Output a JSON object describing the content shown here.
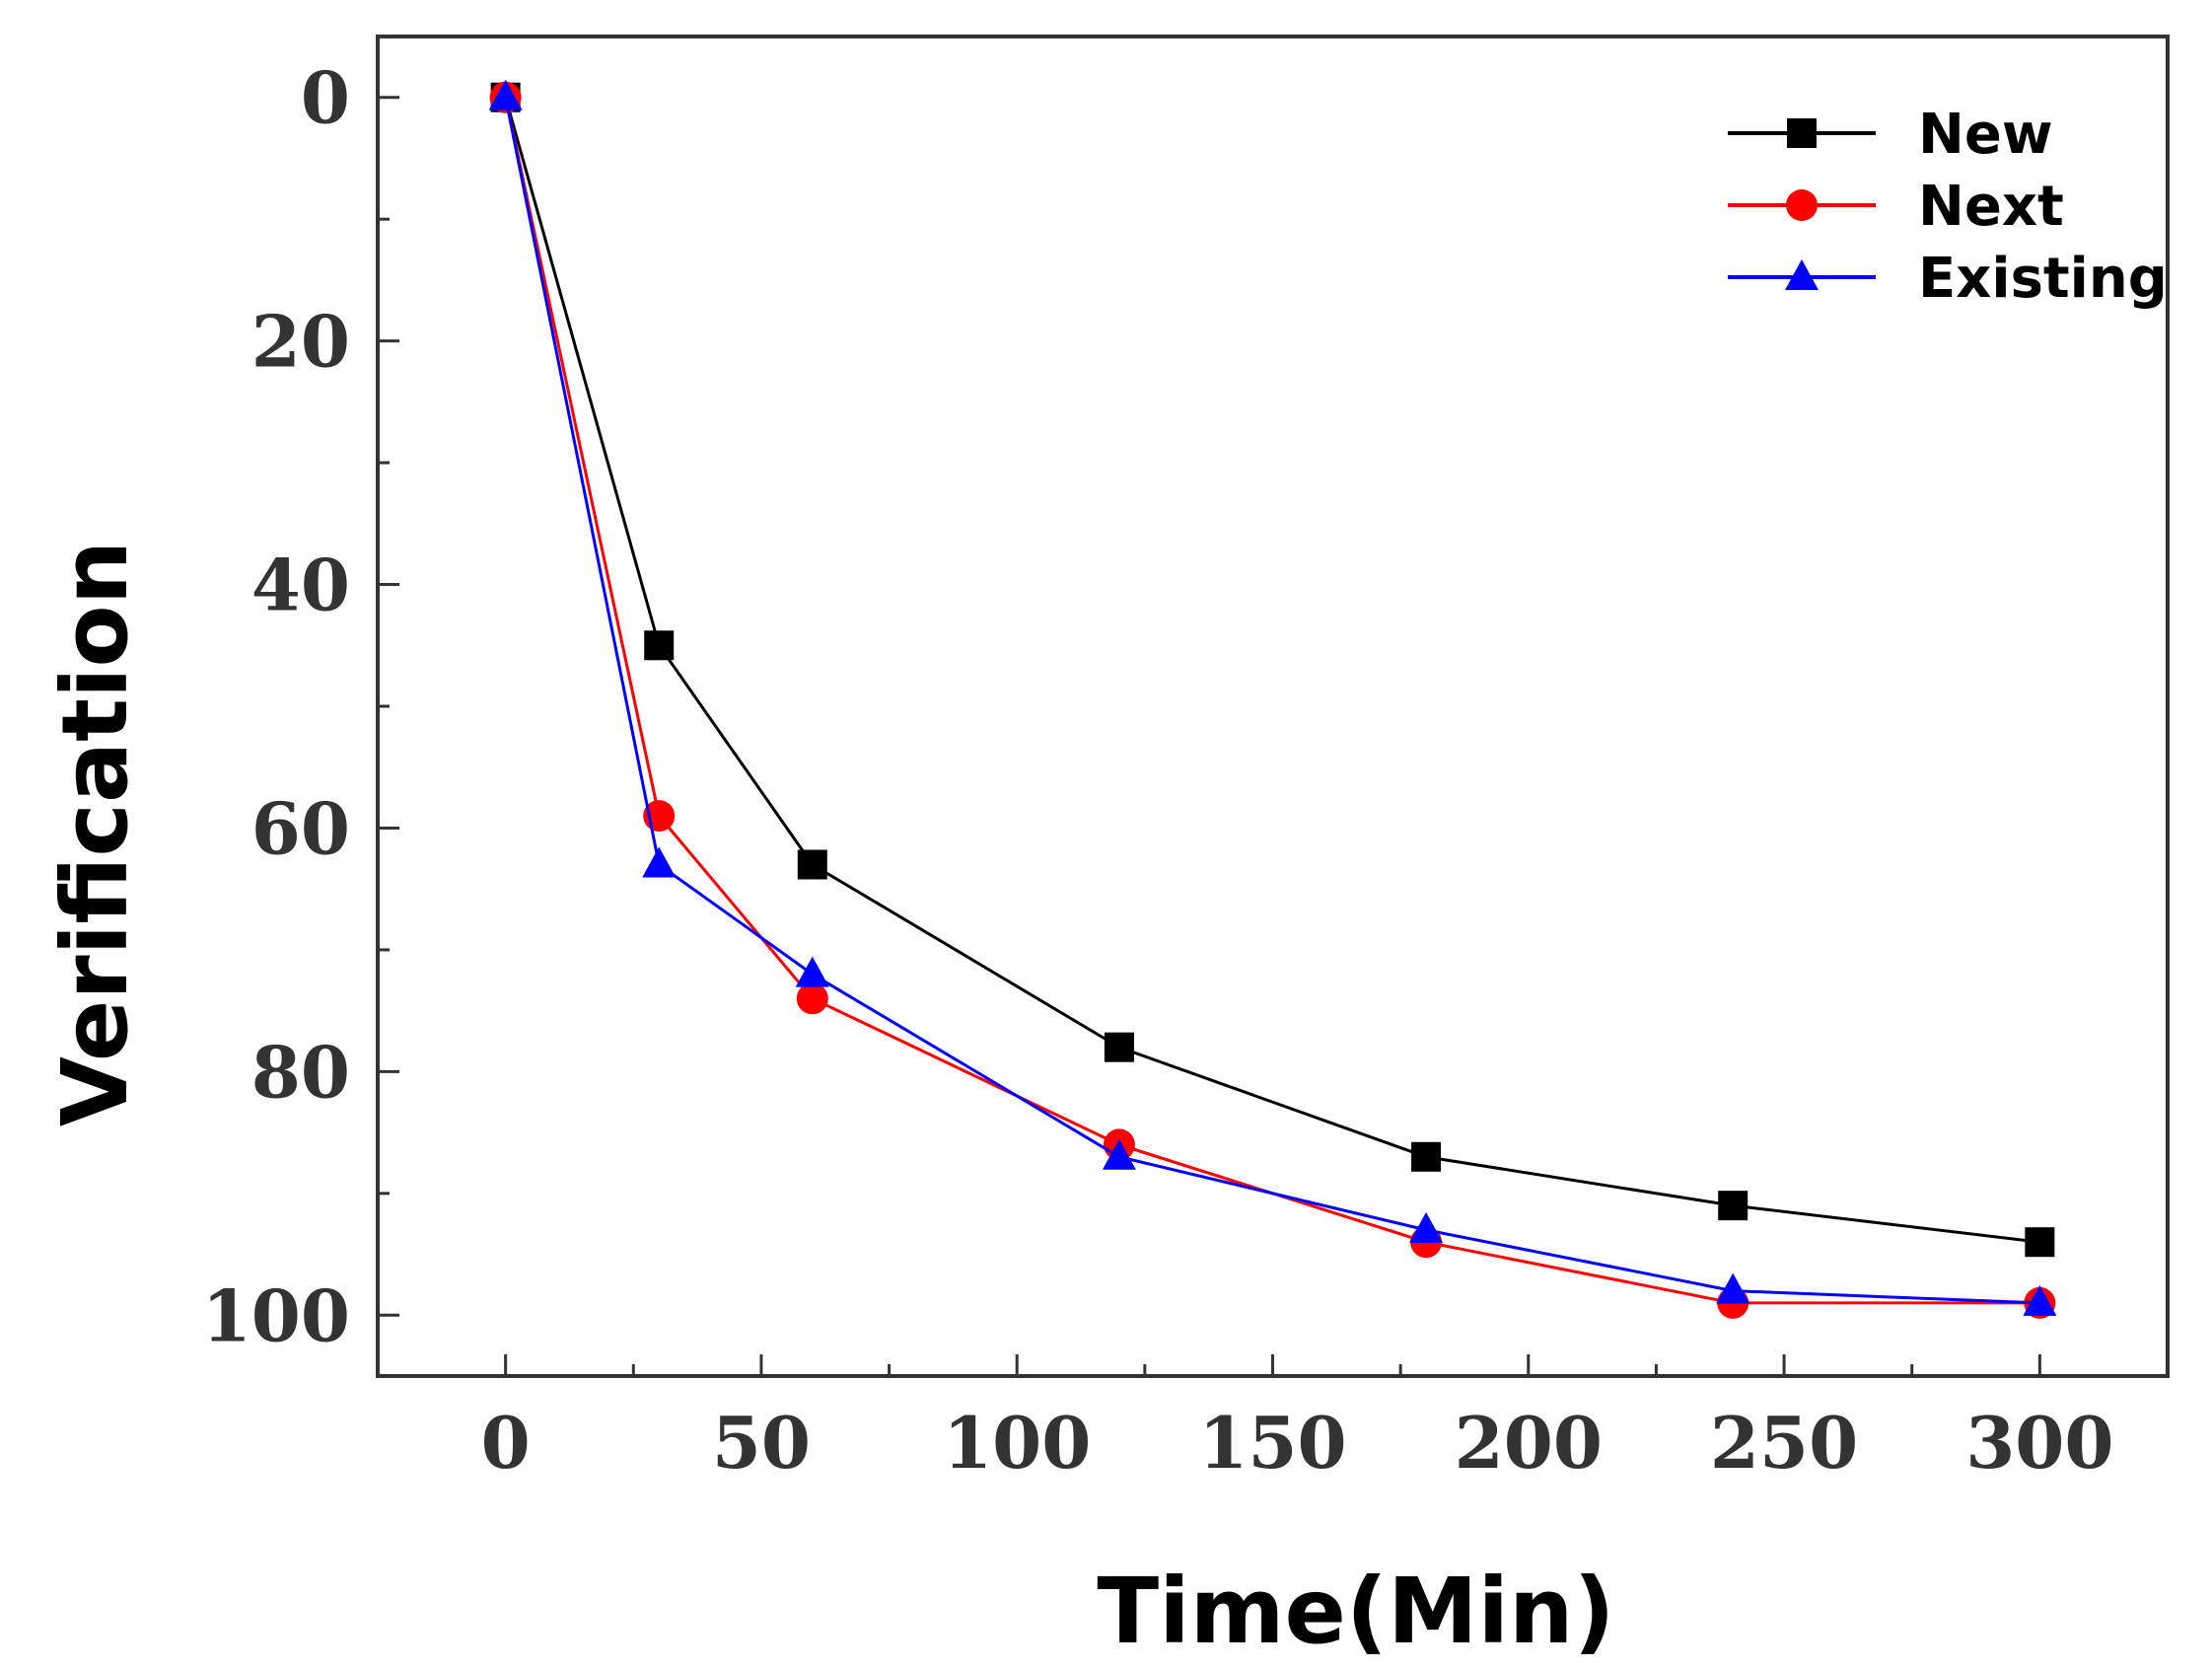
{
  "chart_data": {
    "type": "line",
    "title": "",
    "xlabel": "Time(Min)",
    "ylabel": "Verification",
    "xlim": [
      -25,
      325
    ],
    "ylim": [
      -5,
      105
    ],
    "y_inverted": true,
    "x_ticks": [
      0,
      50,
      100,
      150,
      200,
      250,
      300
    ],
    "x_tick_labels": [
      "0",
      "50",
      "100",
      "150",
      "200",
      "250",
      "300"
    ],
    "y_ticks": [
      0,
      20,
      40,
      60,
      80,
      100
    ],
    "y_tick_labels": [
      "0",
      "20",
      "40",
      "60",
      "80",
      "100"
    ],
    "x": [
      0,
      30,
      60,
      120,
      180,
      240,
      300
    ],
    "legend_position": "top-right",
    "grid": false,
    "series": [
      {
        "name": "New",
        "values": [
          0,
          45,
          63,
          78,
          87,
          91,
          94
        ],
        "color": "#000000",
        "marker": "square"
      },
      {
        "name": "Next",
        "values": [
          0,
          59,
          74,
          86,
          94,
          99,
          99
        ],
        "color": "#ff0000",
        "marker": "circle"
      },
      {
        "name": "Existing",
        "values": [
          0,
          63,
          72,
          87,
          93,
          98,
          99
        ],
        "color": "#0000ff",
        "marker": "triangle"
      }
    ]
  }
}
